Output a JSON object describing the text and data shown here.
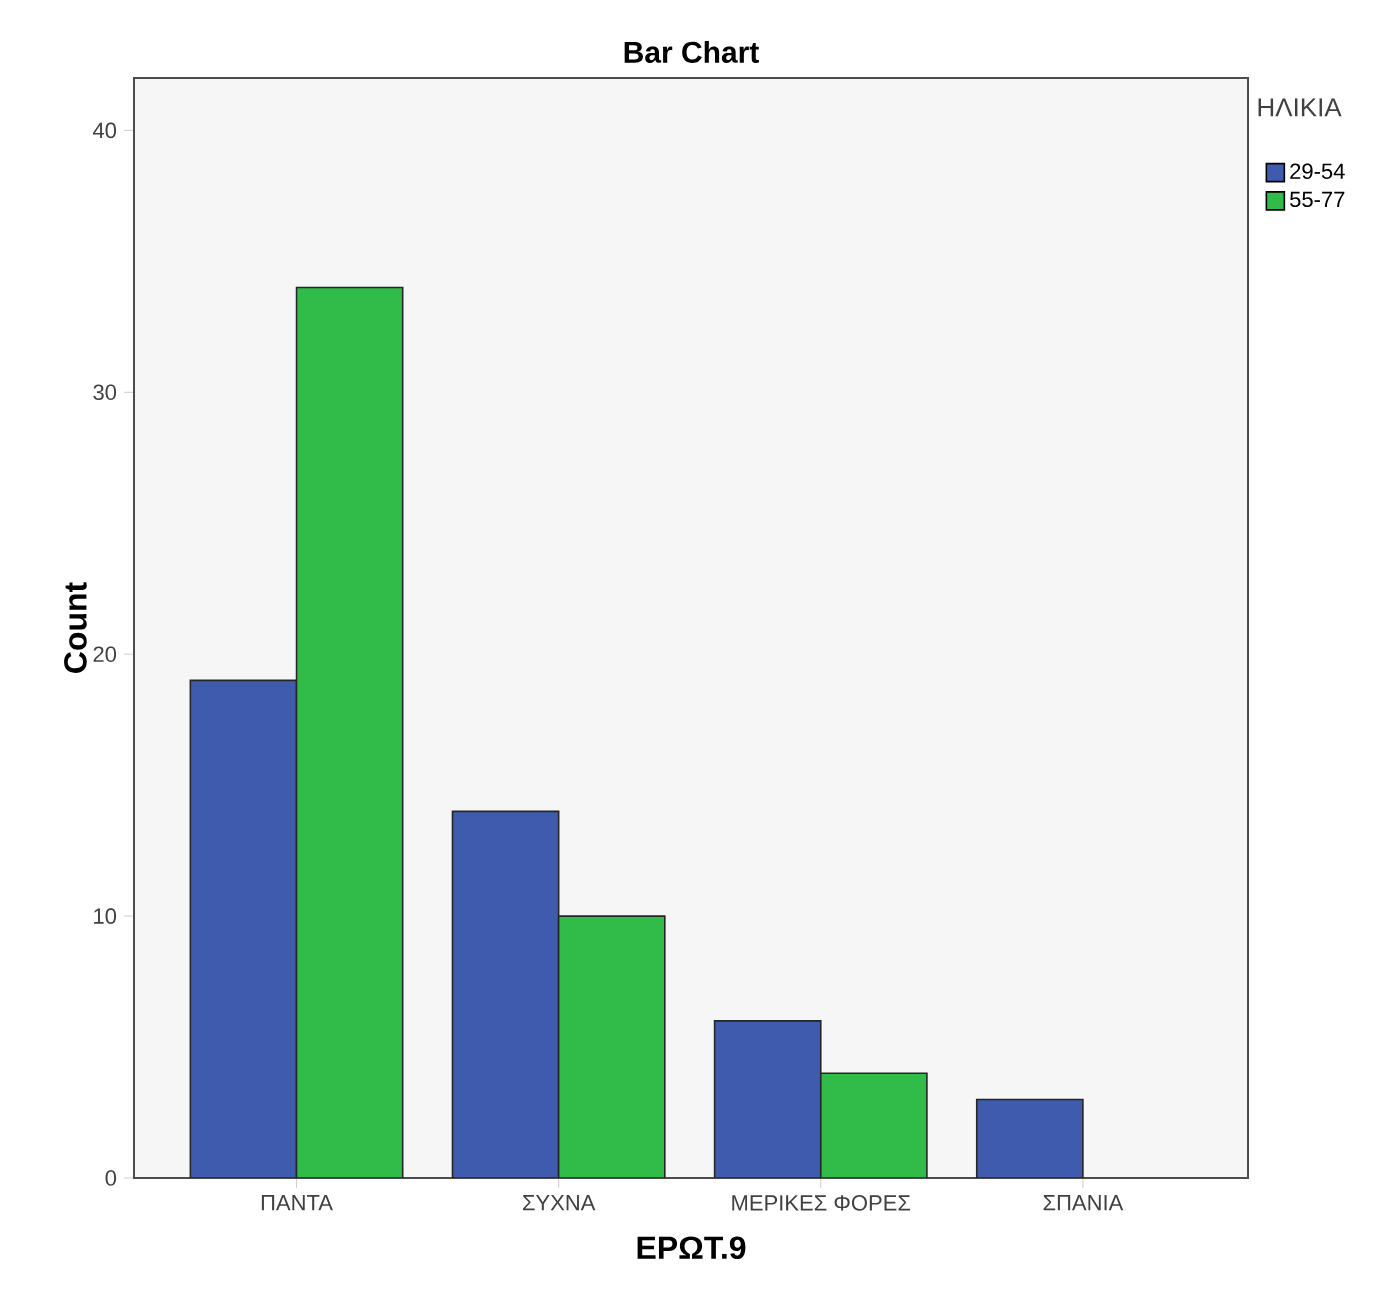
{
  "chart_data": {
    "type": "bar",
    "title": "Bar Chart",
    "xlabel": "ΕΡΩΤ.9",
    "ylabel": "Count",
    "legend_title": "ΗΛΙΚΙΑ",
    "categories": [
      "ΠΑΝΤΑ",
      "ΣΥΧΝΑ",
      "ΜΕΡΙΚΕΣ ΦΟΡΕΣ",
      "ΣΠΑΝΙΑ"
    ],
    "series": [
      {
        "name": "29-54",
        "color": "#3f5bae",
        "values": [
          19,
          14,
          6,
          3
        ]
      },
      {
        "name": "55-77",
        "color": "#31bc4a",
        "values": [
          34,
          10,
          4,
          null
        ]
      }
    ],
    "ylim": [
      0,
      42
    ],
    "yticks": [
      0,
      10,
      20,
      30,
      40
    ],
    "grid": false,
    "legend": "top right"
  }
}
